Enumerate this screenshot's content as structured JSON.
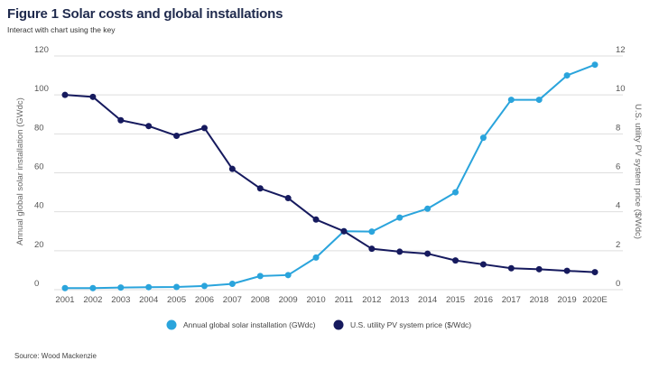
{
  "header": {
    "title": "Figure 1  Solar costs and global installations",
    "subtitle": "Interact with chart using the key"
  },
  "footer": {
    "source": "Source: Wood Mackenzie"
  },
  "chart_data": {
    "type": "line",
    "title": "Figure 1  Solar costs and global installations",
    "subtitle": "Interact with chart using the key",
    "categories": [
      "2001",
      "2002",
      "2003",
      "2004",
      "2005",
      "2006",
      "2007",
      "2008",
      "2009",
      "2010",
      "2011",
      "2012",
      "2013",
      "2014",
      "2015",
      "2016",
      "2017",
      "2018",
      "2019",
      "2020E"
    ],
    "y_left": {
      "label": "Annual global solar installation (GWdc)",
      "range": [
        0,
        120
      ],
      "ticks": [
        0,
        20,
        40,
        60,
        80,
        100,
        120
      ]
    },
    "y_right": {
      "label": "U.S. utility PV system price ($/Wdc)",
      "range": [
        0,
        12
      ],
      "ticks": [
        0,
        2,
        4,
        6,
        8,
        10,
        12
      ]
    },
    "grid": true,
    "legend_position": "bottom-center",
    "series": [
      {
        "name": "Annual global solar installation (GWdc)",
        "axis": "left",
        "color": "#2aa4dc",
        "values": [
          0.8,
          0.8,
          1.1,
          1.3,
          1.4,
          1.9,
          3.0,
          7.0,
          7.5,
          16.5,
          30.0,
          29.8,
          37.0,
          41.6,
          50.0,
          78.0,
          97.5,
          97.5,
          110.0,
          115.5
        ]
      },
      {
        "name": "U.S. utility PV system price ($/Wdc)",
        "axis": "right",
        "color": "#161a5e",
        "values": [
          10.0,
          9.9,
          8.7,
          8.4,
          7.9,
          8.3,
          6.2,
          5.2,
          4.7,
          3.6,
          3.0,
          2.1,
          1.95,
          1.85,
          1.5,
          1.3,
          1.1,
          1.05,
          0.97,
          0.9
        ]
      }
    ]
  }
}
